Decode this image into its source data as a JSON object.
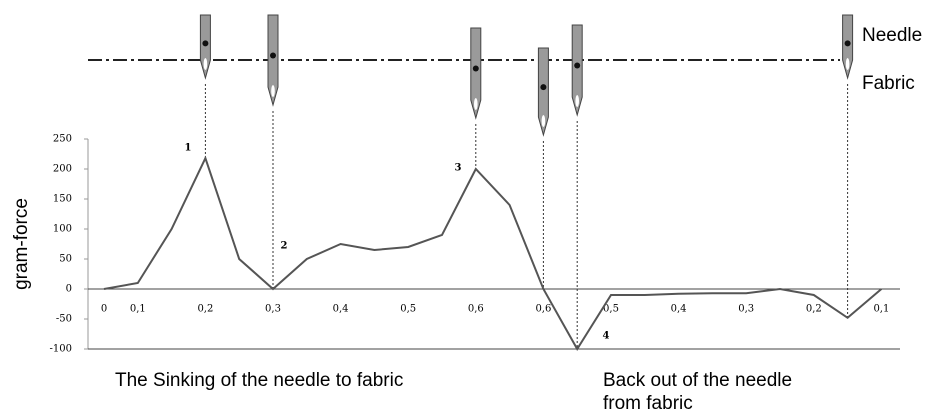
{
  "chart_data": {
    "type": "line",
    "y_label": "gram-force",
    "categories": [
      "0",
      "0,1",
      null,
      "0,2",
      null,
      "0,3",
      null,
      "0,4",
      null,
      "0,5",
      null,
      "0,6",
      null,
      "0,6",
      null,
      "0,5",
      null,
      "0,4",
      null,
      "0,3",
      null,
      "0,2",
      null,
      "0,1"
    ],
    "series": [
      {
        "color": "#555555",
        "values": [
          0,
          10,
          100,
          218,
          50,
          0,
          50,
          75,
          65,
          70,
          90,
          200,
          140,
          0,
          -100,
          -10,
          -10,
          -8,
          -7,
          -7,
          0,
          -10,
          -48,
          0
        ]
      }
    ],
    "ylim": [
      -100,
      250
    ],
    "yticks": [
      -100,
      -50,
      0,
      50,
      100,
      150,
      200,
      250
    ],
    "annotations": [
      "1",
      "2",
      "3",
      "4"
    ],
    "legend": [
      "Needle",
      "Fabric"
    ],
    "captions": [
      "The Sinking of the needle to fabric",
      "Back out of the needle",
      "from fabric"
    ]
  }
}
